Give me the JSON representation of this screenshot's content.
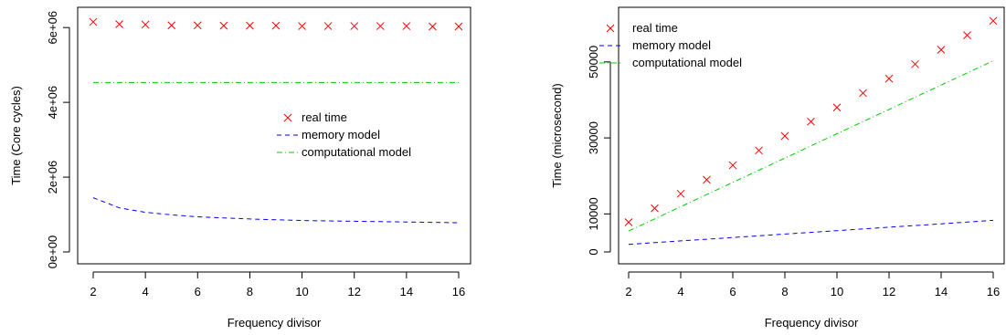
{
  "chart_data": [
    {
      "type": "scatter",
      "xlabel": "Frequency divisor",
      "ylabel": "Time (Core cycles)",
      "xlim": [
        2,
        16
      ],
      "ylim": [
        0,
        6200000
      ],
      "xticks": [
        2,
        4,
        6,
        8,
        10,
        12,
        14,
        16
      ],
      "xtick_labels": [
        "2",
        "4",
        "6",
        "8",
        "10",
        "12",
        "14",
        "16"
      ],
      "yticks": [
        0,
        2000000,
        4000000,
        6000000
      ],
      "ytick_labels": [
        "0e+00",
        "2e+06",
        "4e+06",
        "6e+06"
      ],
      "x": [
        2,
        3,
        4,
        5,
        6,
        7,
        8,
        9,
        10,
        11,
        12,
        13,
        14,
        15,
        16
      ],
      "series": [
        {
          "name": "real time",
          "kind": "points",
          "color": "#ff0000",
          "values": [
            6150000,
            6090000,
            6080000,
            6060000,
            6060000,
            6050000,
            6050000,
            6050000,
            6040000,
            6040000,
            6040000,
            6040000,
            6040000,
            6030000,
            6030000
          ]
        },
        {
          "name": "memory model",
          "kind": "dashed-line",
          "color": "#0000ff",
          "values": [
            1450000,
            1180000,
            1060000,
            990000,
            940000,
            910000,
            880000,
            860000,
            840000,
            830000,
            820000,
            810000,
            800000,
            790000,
            780000
          ]
        },
        {
          "name": "computational model",
          "kind": "dotdash-line",
          "color": "#00cc00",
          "values": [
            4530000,
            4530000,
            4530000,
            4530000,
            4530000,
            4530000,
            4530000,
            4530000,
            4530000,
            4530000,
            4530000,
            4530000,
            4530000,
            4530000,
            4530000
          ]
        }
      ],
      "legend": "middle-right",
      "grid": false
    },
    {
      "type": "scatter",
      "xlabel": "Frequency divisor",
      "ylabel": "Time (microsecond)",
      "xlim": [
        2,
        16
      ],
      "ylim": [
        0,
        61000
      ],
      "xticks": [
        2,
        4,
        6,
        8,
        10,
        12,
        14,
        16
      ],
      "xtick_labels": [
        "2",
        "4",
        "6",
        "8",
        "10",
        "12",
        "14",
        "16"
      ],
      "yticks": [
        0,
        10000,
        30000,
        50000
      ],
      "ytick_labels": [
        "0",
        "10000",
        "30000",
        "50000"
      ],
      "x": [
        2,
        3,
        4,
        5,
        6,
        7,
        8,
        9,
        10,
        11,
        12,
        13,
        14,
        15,
        16
      ],
      "series": [
        {
          "name": "real time",
          "kind": "points",
          "color": "#ff0000",
          "values": [
            7800,
            11500,
            15300,
            19000,
            22800,
            26700,
            30500,
            34300,
            38000,
            41800,
            45600,
            49400,
            53200,
            57000,
            60800
          ]
        },
        {
          "name": "memory model",
          "kind": "dashed-line",
          "color": "#0000ff",
          "values": [
            2000,
            2450,
            2900,
            3350,
            3800,
            4250,
            4700,
            5150,
            5600,
            6050,
            6500,
            6950,
            7400,
            7850,
            8300
          ]
        },
        {
          "name": "computational model",
          "kind": "dotdash-line",
          "color": "#00cc00",
          "values": [
            5500,
            8700,
            11900,
            15100,
            18300,
            21500,
            24700,
            27900,
            31100,
            34300,
            37500,
            40700,
            43900,
            47100,
            50300
          ]
        }
      ],
      "legend": "top-left",
      "grid": false
    }
  ]
}
